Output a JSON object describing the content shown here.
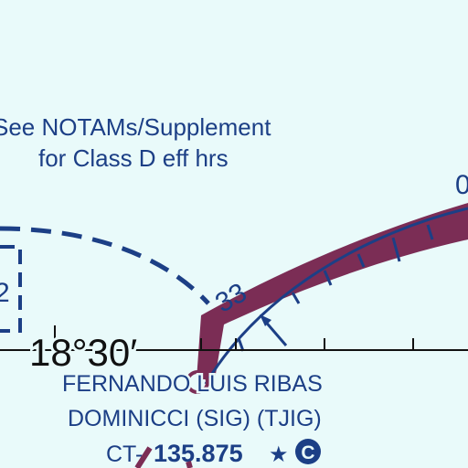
{
  "chart": {
    "notam_line1": "See NOTAMs/Supplement",
    "notam_line2": "for Class D eff hrs",
    "latitude": "18°30′",
    "airport_line1": "FERNANDO LUIS RIBAS",
    "airport_line2": "DOMINICCI (SIG) (TJIG)",
    "ct_prefix": "CT",
    "ct_freq": "135.875",
    "star": "★",
    "ctaf": "C",
    "airspace_fragment": "2",
    "compass_label": "33",
    "compass_edge_label": "0"
  },
  "colors": {
    "background": "#e9fafa",
    "chart_blue": "#1c3f86",
    "magenta_band": "#7b2d55"
  }
}
